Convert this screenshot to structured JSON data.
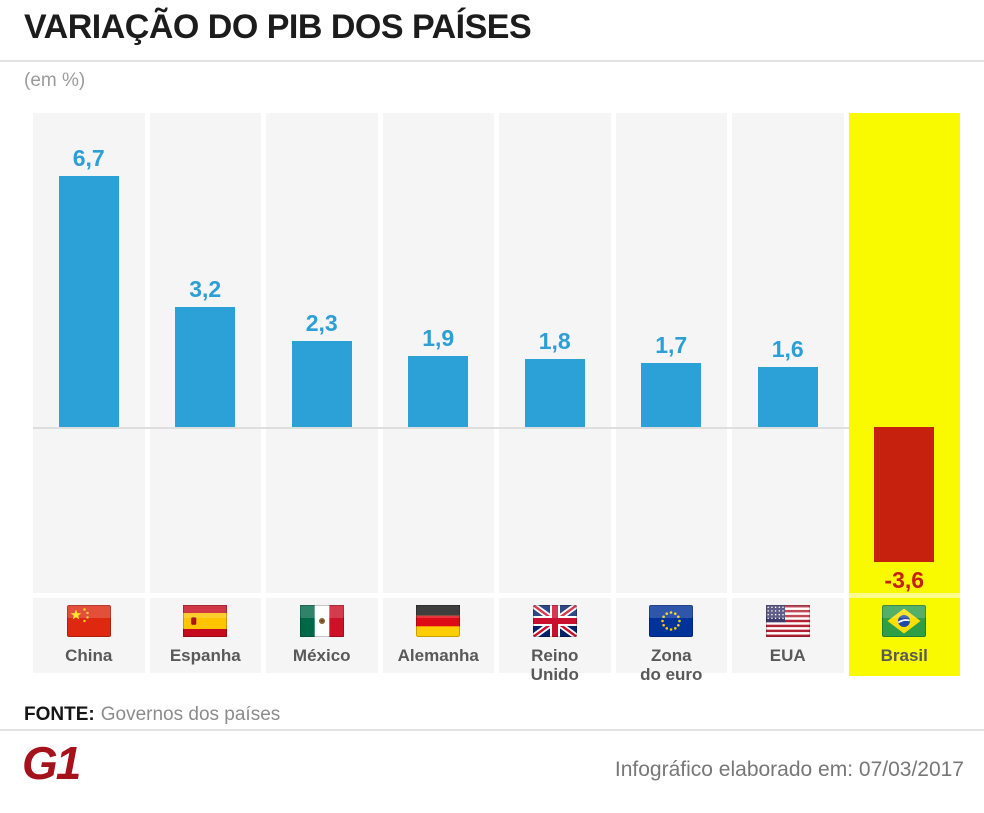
{
  "header": {
    "title": "VARIAÇÃO DO PIB DOS PAÍSES",
    "subtitle": "(em %)"
  },
  "chart_data": {
    "type": "bar",
    "title": "VARIAÇÃO DO PIB DOS PAÍSES",
    "unit": "(em %)",
    "categories": [
      "China",
      "Espanha",
      "México",
      "Alemanha",
      "Reino Unido",
      "Zona do euro",
      "EUA",
      "Brasil"
    ],
    "label_lines": [
      [
        "China"
      ],
      [
        "Espanha"
      ],
      [
        "México"
      ],
      [
        "Alemanha"
      ],
      [
        "Reino",
        "Unido"
      ],
      [
        "Zona",
        "do euro"
      ],
      [
        "EUA"
      ],
      [
        "Brasil"
      ]
    ],
    "values": [
      6.7,
      3.2,
      2.3,
      1.9,
      1.8,
      1.7,
      1.6,
      -3.6
    ],
    "value_labels": [
      "6,7",
      "3,2",
      "2,3",
      "1,9",
      "1,8",
      "1,7",
      "1,6",
      "-3,6"
    ],
    "flags": [
      "china",
      "spain",
      "mexico",
      "germany",
      "uk",
      "eu",
      "usa",
      "brazil"
    ],
    "keys": [
      "china",
      "espanha",
      "mexico",
      "alemanha",
      "reino-unido",
      "zona-do-euro",
      "eua",
      "brasil"
    ],
    "highlight_index": 7,
    "baseline": 0,
    "ylim": [
      -4.4,
      8.4
    ],
    "grid": "off",
    "legend": "none",
    "colors": {
      "positive_bar": "#2BA1D8",
      "negative_bar": "#C5210E",
      "value_label": "#2B9FD6",
      "negative_label": "#C5210E",
      "highlight_bg": "#F9F900",
      "column_bg": "#F5F5F5"
    }
  },
  "footer": {
    "source_label": "FONTE:",
    "source_value": "Governos dos países",
    "logo": "G1",
    "credit": "Infográfico elaborado em: 07/03/2017"
  }
}
